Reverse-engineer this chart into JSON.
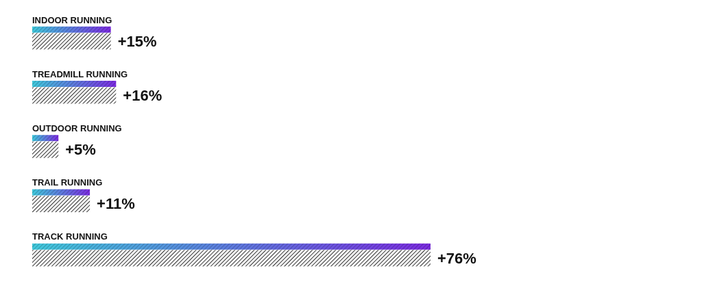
{
  "chart_data": {
    "type": "bar",
    "orientation": "horizontal",
    "tick_labels": "y",
    "categories": [
      "INDOOR RUNNING",
      "TREADMILL RUNNING",
      "OUTDOOR RUNNING",
      "TRAIL RUNNING",
      "TRACK RUNNING"
    ],
    "series": [
      {
        "color": "#7a2be0",
        "values": [
          15,
          16,
          5,
          11,
          76
        ]
      },
      {
        "color": "#333333",
        "values": [
          15,
          16,
          5,
          11,
          76
        ],
        "value_labels": [
          "+15%",
          "+16%",
          "+5%",
          "+11%",
          "+76%"
        ]
      }
    ]
  }
}
